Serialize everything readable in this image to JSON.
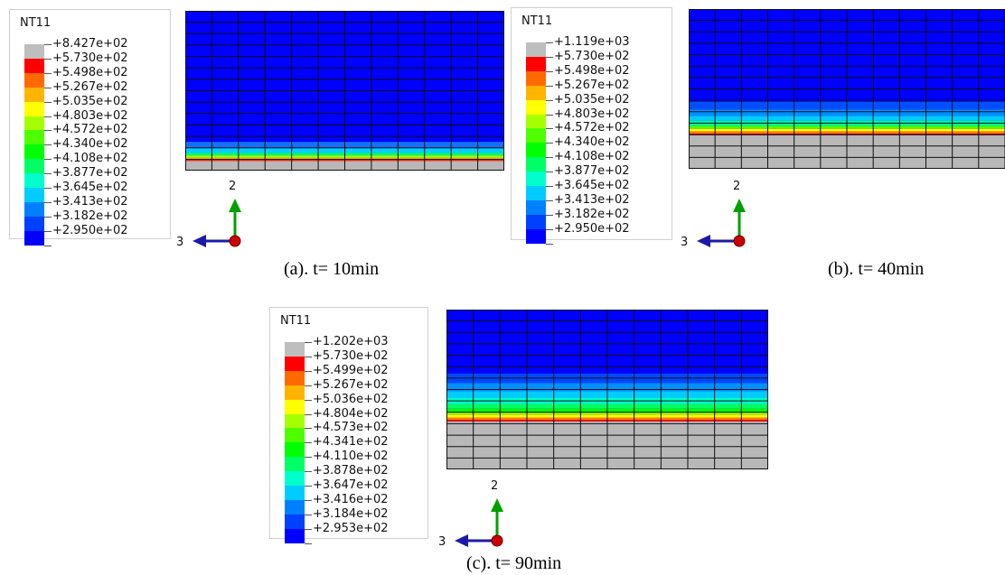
{
  "colors": {
    "band": [
      "#bebebe",
      "#ff0000",
      "#ff6a00",
      "#ffb400",
      "#ffff00",
      "#a6ff00",
      "#4dff00",
      "#00ff00",
      "#00ff66",
      "#00ffcc",
      "#00ccff",
      "#0080ff",
      "#0040ff",
      "#0000ff"
    ],
    "mesh_blue": "#0000ff",
    "mesh_gray": "#b8b8b8",
    "axis_green": "#00a000",
    "axis_blue": "#1a1aa8",
    "axis_red": "#cc0000"
  },
  "panels": [
    {
      "id": "a",
      "legend_title": "NT11",
      "legend_values": [
        "+8.427e+02",
        "+5.730e+02",
        "+5.498e+02",
        "+5.267e+02",
        "+5.035e+02",
        "+4.803e+02",
        "+4.572e+02",
        "+4.340e+02",
        "+4.108e+02",
        "+3.877e+02",
        "+3.645e+02",
        "+3.413e+02",
        "+3.182e+02",
        "+2.950e+02"
      ],
      "caption": "(a). t= 10min",
      "axis_up": "2",
      "axis_left": "3"
    },
    {
      "id": "b",
      "legend_title": "NT11",
      "legend_values": [
        "+1.119e+03",
        "+5.730e+02",
        "+5.498e+02",
        "+5.267e+02",
        "+5.035e+02",
        "+4.803e+02",
        "+4.572e+02",
        "+4.340e+02",
        "+4.108e+02",
        "+3.877e+02",
        "+3.645e+02",
        "+3.413e+02",
        "+3.182e+02",
        "+2.950e+02"
      ],
      "caption": "(b). t= 40min",
      "axis_up": "2",
      "axis_left": "3"
    },
    {
      "id": "c",
      "legend_title": "NT11",
      "legend_values": [
        "+1.202e+03",
        "+5.730e+02",
        "+5.499e+02",
        "+5.267e+02",
        "+5.036e+02",
        "+4.804e+02",
        "+4.573e+02",
        "+4.341e+02",
        "+4.110e+02",
        "+3.878e+02",
        "+3.647e+02",
        "+3.416e+02",
        "+3.184e+02",
        "+2.953e+02"
      ],
      "caption": "(c). t= 90min",
      "axis_up": "2",
      "axis_left": "3"
    }
  ]
}
